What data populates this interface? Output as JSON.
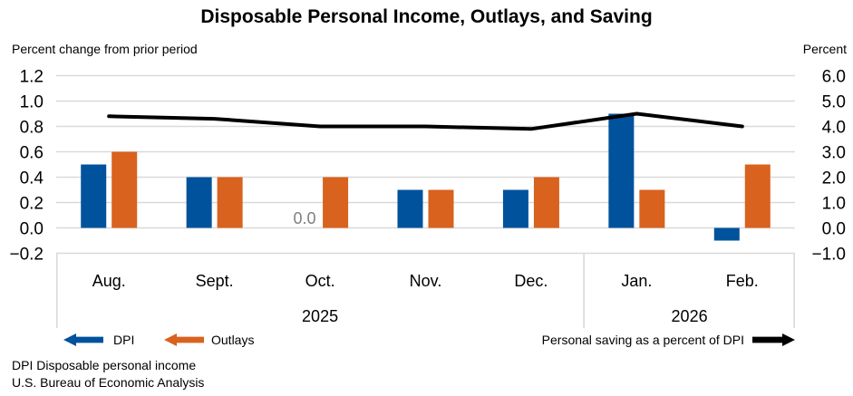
{
  "title": "Disposable Personal Income, Outlays, and Saving",
  "left_axis": {
    "unit_label": "Percent change from prior period",
    "ticks": [
      "1.2",
      "1.0",
      "0.8",
      "0.6",
      "0.4",
      "0.2",
      "0.0",
      "−0.2"
    ]
  },
  "right_axis": {
    "unit_label": "Percent",
    "ticks": [
      "6.0",
      "5.0",
      "4.0",
      "3.0",
      "2.0",
      "1.0",
      "0.0",
      "−1.0"
    ]
  },
  "chart_data": {
    "type": "bar+line",
    "categories": [
      "Aug.",
      "Sept.",
      "Oct.",
      "Nov.",
      "Dec.",
      "Jan.",
      "Feb."
    ],
    "year_groups": [
      {
        "label": "2025",
        "span": [
          0,
          4
        ]
      },
      {
        "label": "2026",
        "span": [
          5,
          6
        ]
      }
    ],
    "left_ylim": [
      -0.2,
      1.2
    ],
    "right_ylim": [
      -1.0,
      6.0
    ],
    "grid": true,
    "legend_position": "bottom",
    "series": [
      {
        "name": "DPI",
        "type": "bar",
        "axis": "left",
        "values": [
          0.5,
          0.4,
          0.0,
          0.3,
          0.3,
          0.9,
          -0.1
        ]
      },
      {
        "name": "Outlays",
        "type": "bar",
        "axis": "left",
        "values": [
          0.6,
          0.4,
          0.4,
          0.3,
          0.4,
          0.3,
          0.5
        ]
      },
      {
        "name": "Personal saving as a percent of DPI",
        "type": "line",
        "axis": "right",
        "values": [
          4.4,
          4.3,
          4.0,
          4.0,
          3.9,
          4.5,
          4.0
        ]
      }
    ],
    "annotations": [
      {
        "text": "0.0",
        "category_index": 2,
        "series": "DPI"
      }
    ]
  },
  "legend": {
    "dpi_label": "DPI",
    "outlays_label": "Outlays",
    "saving_label": "Personal saving as a percent of DPI"
  },
  "footnotes": [
    "DPI Disposable personal income",
    "U.S. Bureau of Economic Analysis"
  ],
  "colors": {
    "dpi": "#00529C",
    "outlays": "#D8621E",
    "saving_line": "#000000",
    "gridline": "#D9D9D9",
    "annotation_gray": "#7F7F7F"
  }
}
